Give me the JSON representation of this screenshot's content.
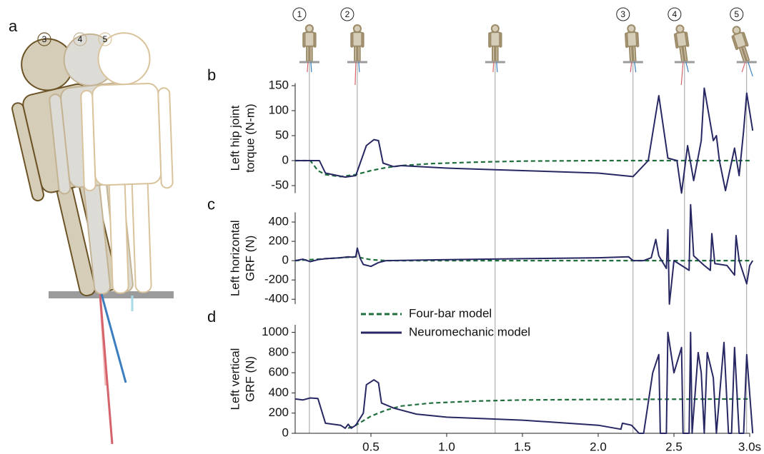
{
  "panel_a": {
    "label": "a",
    "figures": [
      "5",
      "4",
      "3"
    ]
  },
  "events": {
    "times": [
      0.094,
      0.41,
      1.32,
      2.23,
      2.57,
      2.98
    ],
    "labels": [
      "1",
      "2",
      null,
      "3",
      "4",
      "5"
    ]
  },
  "chart_data": [
    {
      "type": "line",
      "panel": "b",
      "ylabel": [
        "Left hip joint",
        "torque (N-m)"
      ],
      "xlim": [
        0,
        3.0
      ],
      "ylim": [
        -65,
        155
      ],
      "yticks": [
        -50,
        0,
        50,
        100,
        150
      ],
      "series": [
        {
          "name": "Four-bar model",
          "color": "#1f6e3c",
          "linestyle": "dashed",
          "x": [
            0,
            0.1,
            0.15,
            0.2,
            0.3,
            0.4,
            0.5,
            0.6,
            0.7,
            0.9,
            1.2,
            1.5,
            2.0,
            2.5,
            3.0
          ],
          "values": [
            0,
            0,
            -20,
            -28,
            -32,
            -28,
            -20,
            -14,
            -10,
            -6,
            -3,
            -1,
            0,
            0,
            0
          ]
        },
        {
          "name": "Neuromechanic model",
          "color": "#272763",
          "linestyle": "solid",
          "x": [
            0,
            0.16,
            0.2,
            0.33,
            0.4,
            0.47,
            0.52,
            0.55,
            0.58,
            0.65,
            0.7,
            1.0,
            1.5,
            2.0,
            2.23,
            2.33,
            2.4,
            2.46,
            2.52,
            2.55,
            2.59,
            2.63,
            2.68,
            2.7,
            2.76,
            2.78,
            2.8,
            2.84,
            2.9,
            2.93,
            2.96,
            2.98,
            3.02
          ],
          "values": [
            0,
            0,
            -25,
            -33,
            -30,
            30,
            42,
            40,
            -5,
            -12,
            -10,
            -15,
            -20,
            -25,
            -32,
            0,
            130,
            5,
            0,
            -65,
            30,
            -40,
            40,
            145,
            40,
            50,
            0,
            -60,
            25,
            -30,
            60,
            135,
            60
          ]
        }
      ]
    },
    {
      "type": "line",
      "panel": "c",
      "ylabel": [
        "Left horizontal",
        "GRF (N)"
      ],
      "xlim": [
        0,
        3.0
      ],
      "ylim": [
        -450,
        500
      ],
      "yticks": [
        -400,
        -200,
        0,
        200,
        400
      ],
      "series": [
        {
          "name": "Four-bar model",
          "color": "#1f6e3c",
          "linestyle": "dashed",
          "x": [
            0,
            0.4,
            0.5,
            0.6,
            3.0
          ],
          "values": [
            0,
            40,
            10,
            0,
            0
          ]
        },
        {
          "name": "Neuromechanic model",
          "color": "#272763",
          "linestyle": "solid",
          "x": [
            0,
            0.05,
            0.1,
            0.15,
            0.2,
            0.3,
            0.35,
            0.38,
            0.4,
            0.41,
            0.43,
            0.45,
            0.5,
            0.55,
            0.6,
            1.0,
            1.5,
            2.0,
            2.2,
            2.23,
            2.3,
            2.35,
            2.38,
            2.4,
            2.45,
            2.46,
            2.47,
            2.5,
            2.55,
            2.6,
            2.61,
            2.63,
            2.7,
            2.74,
            2.75,
            2.77,
            2.85,
            2.9,
            2.91,
            2.93,
            2.98,
            3.0,
            3.02
          ],
          "values": [
            0,
            15,
            -10,
            10,
            20,
            30,
            40,
            35,
            40,
            130,
            20,
            -40,
            -60,
            -20,
            0,
            10,
            20,
            30,
            40,
            0,
            0,
            30,
            220,
            50,
            -80,
            320,
            -450,
            0,
            -50,
            -100,
            580,
            50,
            -50,
            -100,
            280,
            -30,
            -50,
            -150,
            260,
            0,
            -240,
            -50,
            0
          ]
        }
      ]
    },
    {
      "type": "line",
      "panel": "d",
      "ylabel": [
        "Left vertical",
        "GRF (N)"
      ],
      "legend": "upper left",
      "xlim": [
        0,
        3.0
      ],
      "ylim": [
        0,
        1075
      ],
      "yticks": [
        0,
        200,
        400,
        600,
        800,
        1000
      ],
      "xticks": [
        0.5,
        {
          "value": 1,
          "label": "1.0"
        },
        1.5,
        {
          "value": 2,
          "label": "2.0"
        },
        2.5,
        {
          "value": 3,
          "label": "3.0s"
        }
      ],
      "series": [
        {
          "name": "Four-bar model",
          "color": "#1f6e3c",
          "linestyle": "dashed",
          "x": [
            0.35,
            0.4,
            0.5,
            0.6,
            0.7,
            0.9,
            1.2,
            1.5,
            2.0,
            3.0
          ],
          "values": [
            50,
            80,
            170,
            230,
            270,
            300,
            320,
            330,
            335,
            340
          ]
        },
        {
          "name": "Neuromechanic model",
          "color": "#272763",
          "linestyle": "solid",
          "x": [
            0,
            0.05,
            0.1,
            0.15,
            0.2,
            0.3,
            0.33,
            0.35,
            0.37,
            0.4,
            0.45,
            0.47,
            0.52,
            0.55,
            0.57,
            0.65,
            0.8,
            1.0,
            1.5,
            2.0,
            2.15,
            2.16,
            2.22,
            2.27,
            2.3,
            2.36,
            2.4,
            2.41,
            2.45,
            2.46,
            2.5,
            2.55,
            2.56,
            2.6,
            2.61,
            2.62,
            2.66,
            2.68,
            2.7,
            2.72,
            2.76,
            2.78,
            2.83,
            2.86,
            2.88,
            2.9,
            2.93,
            2.96,
            2.98,
            3.02
          ],
          "values": [
            340,
            330,
            350,
            345,
            100,
            80,
            50,
            90,
            50,
            80,
            200,
            480,
            530,
            500,
            300,
            250,
            190,
            160,
            130,
            80,
            40,
            100,
            80,
            0,
            0,
            600,
            780,
            0,
            0,
            1000,
            600,
            850,
            0,
            0,
            1000,
            0,
            800,
            600,
            0,
            800,
            550,
            0,
            900,
            0,
            0,
            850,
            0,
            0,
            780,
            0
          ]
        }
      ]
    }
  ]
}
